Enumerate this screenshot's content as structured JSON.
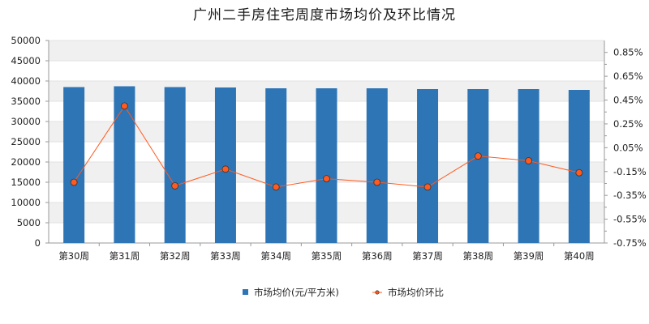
{
  "chart_data": {
    "type": "bar",
    "title": "广州二手房住宅周度市场均价及环比情况",
    "categories": [
      "第30周",
      "第31周",
      "第32周",
      "第33周",
      "第34周",
      "第35周",
      "第36周",
      "第37周",
      "第38周",
      "第39周",
      "第40周"
    ],
    "series": [
      {
        "name": "市场均价(元/平方米)",
        "type": "bar",
        "axis": "left",
        "color": "#2e75b6",
        "values": [
          38500,
          38700,
          38500,
          38400,
          38200,
          38200,
          38200,
          38000,
          38000,
          38000,
          37800
        ]
      },
      {
        "name": "市场均价环比",
        "type": "line",
        "axis": "right",
        "color": "#ff5a1f",
        "values": [
          -0.24,
          0.4,
          -0.27,
          -0.13,
          -0.28,
          -0.21,
          -0.24,
          -0.28,
          -0.02,
          -0.06,
          -0.16
        ]
      }
    ],
    "y_left": {
      "ylim": [
        0,
        50000
      ],
      "ticks": [
        "0",
        "5000",
        "10000",
        "15000",
        "20000",
        "25000",
        "30000",
        "35000",
        "40000",
        "45000",
        "50000"
      ]
    },
    "y_right": {
      "ylim": [
        -0.75,
        0.95
      ],
      "ticks": [
        {
          "v": -0.75,
          "label": "-0.75%"
        },
        {
          "v": -0.55,
          "label": "-0.55%"
        },
        {
          "v": -0.35,
          "label": "-0.35%"
        },
        {
          "v": -0.15,
          "label": "-0.15%"
        },
        {
          "v": 0.05,
          "label": "0.05%"
        },
        {
          "v": 0.25,
          "label": "0.25%"
        },
        {
          "v": 0.45,
          "label": "0.45%"
        },
        {
          "v": 0.65,
          "label": "0.65%"
        },
        {
          "v": 0.85,
          "label": "0.85%"
        }
      ]
    },
    "grid": true,
    "legend_position": "bottom"
  }
}
